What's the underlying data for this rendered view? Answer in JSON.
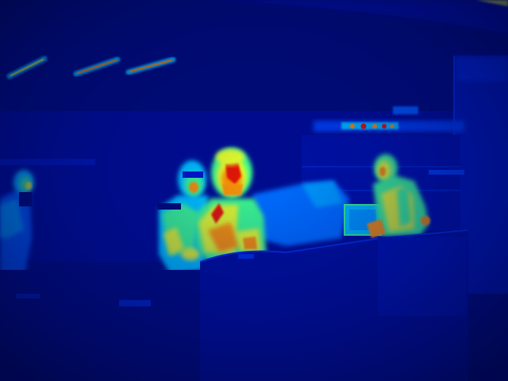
{
  "image": {
    "kind": "thermal-camera-frame",
    "palette": "jet",
    "palette_colors": [
      "#000a6e",
      "#0016c8",
      "#0050ff",
      "#00c8ff",
      "#3cff8c",
      "#e6ff28",
      "#ff9600",
      "#e61400"
    ],
    "subjects": [
      "person-left-edge",
      "person-glasses",
      "person-center",
      "person-right-hood"
    ],
    "objects": [
      "ceiling-light-1",
      "ceiling-light-2",
      "ceiling-light-3",
      "overhead-equipment-strip",
      "laptop-screen",
      "counter",
      "right-cabinet"
    ]
  }
}
